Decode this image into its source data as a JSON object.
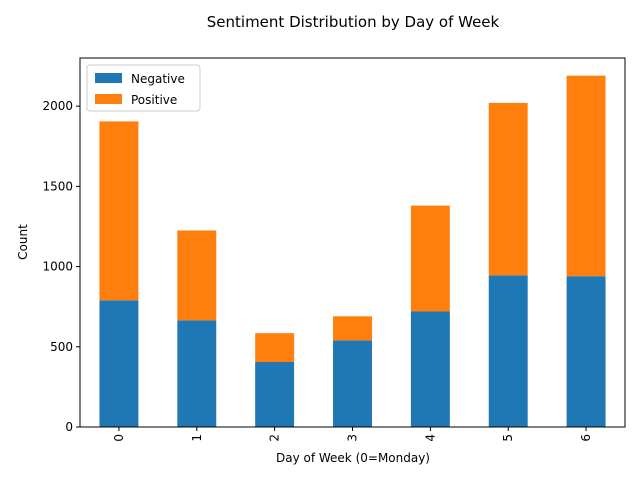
{
  "chart_data": {
    "type": "bar",
    "stacked": true,
    "title": "Sentiment Distribution by Day of Week",
    "xlabel": "Day of Week (0=Monday)",
    "ylabel": "Count",
    "categories": [
      "0",
      "1",
      "2",
      "3",
      "4",
      "5",
      "6"
    ],
    "series": [
      {
        "name": "Negative",
        "color": "#1f77b4",
        "values": [
          790,
          665,
          405,
          540,
          720,
          945,
          940
        ]
      },
      {
        "name": "Positive",
        "color": "#ff7f0e",
        "values": [
          1115,
          560,
          180,
          150,
          660,
          1075,
          1250
        ]
      }
    ],
    "ylim": [
      0,
      2300
    ],
    "yticks": [
      0,
      500,
      1000,
      1500,
      2000
    ],
    "grid": false,
    "legend_position": "top-left",
    "xtick_rotation": "vertical"
  }
}
